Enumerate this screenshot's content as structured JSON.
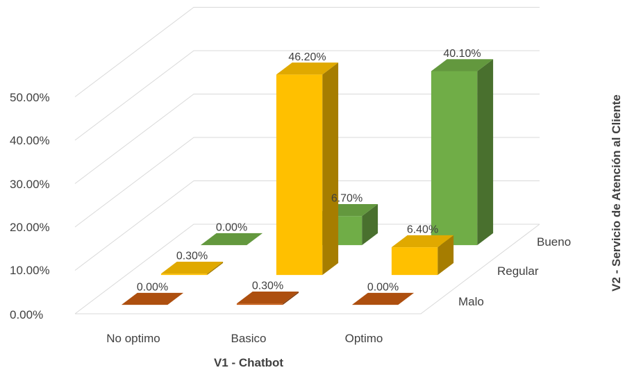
{
  "chart_data": {
    "type": "bar",
    "categories": [
      "No optimo",
      "Basico",
      "Optimo"
    ],
    "series": [
      {
        "name": "Malo",
        "values": [
          0.0,
          0.3,
          0.0
        ],
        "labels": [
          "0.00%",
          "0.30%",
          "0.00%"
        ],
        "color": "#c55a11"
      },
      {
        "name": "Regular",
        "values": [
          0.3,
          46.2,
          6.4
        ],
        "labels": [
          "0.30%",
          "46.20%",
          "6.40%"
        ],
        "color": "#ffc000"
      },
      {
        "name": "Bueno",
        "values": [
          0.0,
          6.7,
          40.1
        ],
        "labels": [
          "0.00%",
          "6.70%",
          "40.10%"
        ],
        "color": "#70ad47"
      }
    ],
    "yticks": [
      "0.00%",
      "10.00%",
      "20.00%",
      "30.00%",
      "40.00%",
      "50.00%"
    ],
    "ylim": [
      0,
      50
    ],
    "xlabel": "V1 - Chatbot",
    "zlabel": "V2 - Servicio de Atención al Cliente",
    "grid": true,
    "projection": "3d"
  }
}
